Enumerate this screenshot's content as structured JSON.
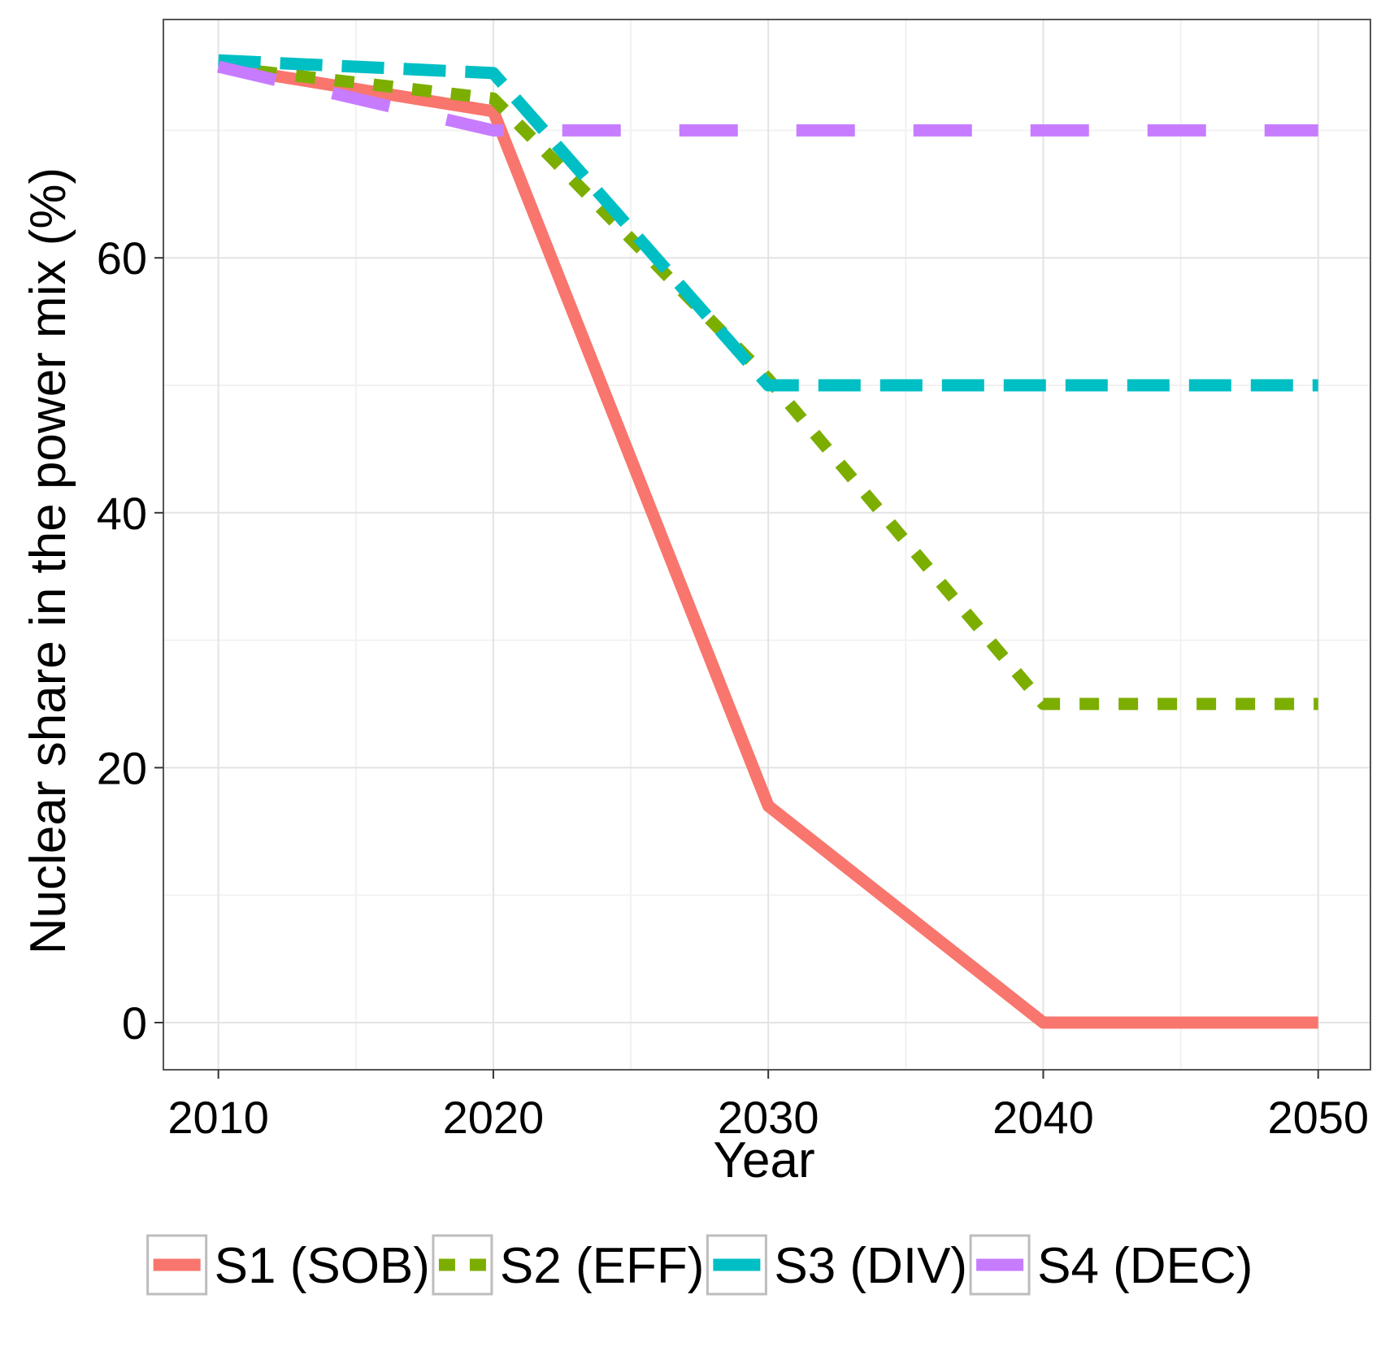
{
  "chart_data": {
    "type": "line",
    "title": "",
    "xlabel": "Year",
    "ylabel": "Nuclear share in the power mix (%)",
    "xlim": [
      2008,
      2051.9
    ],
    "ylim": [
      -3.7,
      78.7
    ],
    "x_ticks": [
      2010,
      2020,
      2030,
      2040,
      2050
    ],
    "y_ticks": [
      0,
      20,
      40,
      60
    ],
    "grid": true,
    "legend_position": "bottom",
    "series": [
      {
        "name": "S1 (SOB)",
        "color": "#F8766D",
        "dash": "solid",
        "x": [
          2010,
          2020,
          2030,
          2040,
          2050
        ],
        "y": [
          75,
          71.5,
          17,
          0,
          0
        ]
      },
      {
        "name": "S2 (EFF)",
        "color": "#7CAE00",
        "dash": "dotted",
        "x": [
          2010,
          2020,
          2030,
          2040,
          2050
        ],
        "y": [
          75,
          72.5,
          50.5,
          25,
          25
        ]
      },
      {
        "name": "S3 (DIV)",
        "color": "#00BFC4",
        "dash": "dashed",
        "x": [
          2010,
          2020,
          2030,
          2040,
          2050
        ],
        "y": [
          75.5,
          74.5,
          50,
          50,
          50
        ]
      },
      {
        "name": "S4 (DEC)",
        "color": "#C77CFF",
        "dash": "longdash",
        "x": [
          2010,
          2020,
          2030,
          2040,
          2050
        ],
        "y": [
          75,
          70,
          70,
          70,
          70
        ]
      }
    ]
  }
}
